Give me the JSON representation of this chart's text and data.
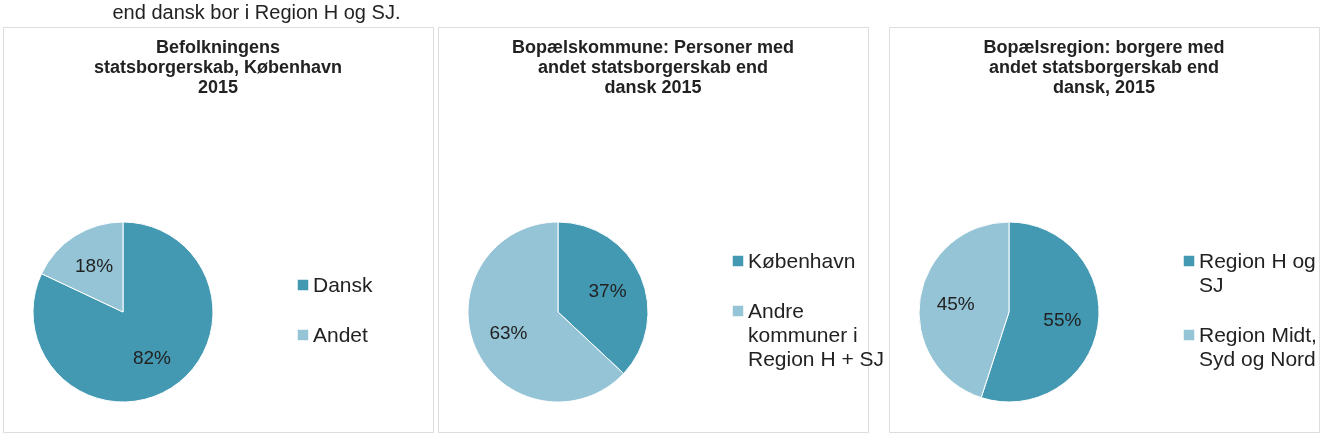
{
  "chart_data": [
    {
      "type": "pie",
      "title": "Befolkningens statsborgerskab, København 2015",
      "categories": [
        "Dansk",
        "Andet"
      ],
      "values": [
        82,
        18
      ],
      "value_labels": [
        "82%",
        "18%"
      ],
      "colors": [
        "#4398b2",
        "#94c4d6"
      ],
      "legend": "right",
      "annotations": [
        "end dansk bor i Region H og SJ."
      ]
    },
    {
      "type": "pie",
      "title": "Bopælskommune: Personer med andet statsborgerskab end dansk 2015",
      "categories": [
        "København",
        "Andre kommuner i Region H + SJ"
      ],
      "values": [
        37,
        63
      ],
      "value_labels": [
        "37%",
        "63%"
      ],
      "colors": [
        "#4398b2",
        "#94c4d6"
      ],
      "legend": "right"
    },
    {
      "type": "pie",
      "title": "Bopælsregion: borgere med andet statsborgerskab end dansk, 2015",
      "categories": [
        "Region H og SJ",
        "Region Midt, Syd og Nord"
      ],
      "values": [
        55,
        45
      ],
      "value_labels": [
        "55%",
        "45%"
      ],
      "colors": [
        "#4398b2",
        "#94c4d6"
      ],
      "legend": "right"
    }
  ]
}
